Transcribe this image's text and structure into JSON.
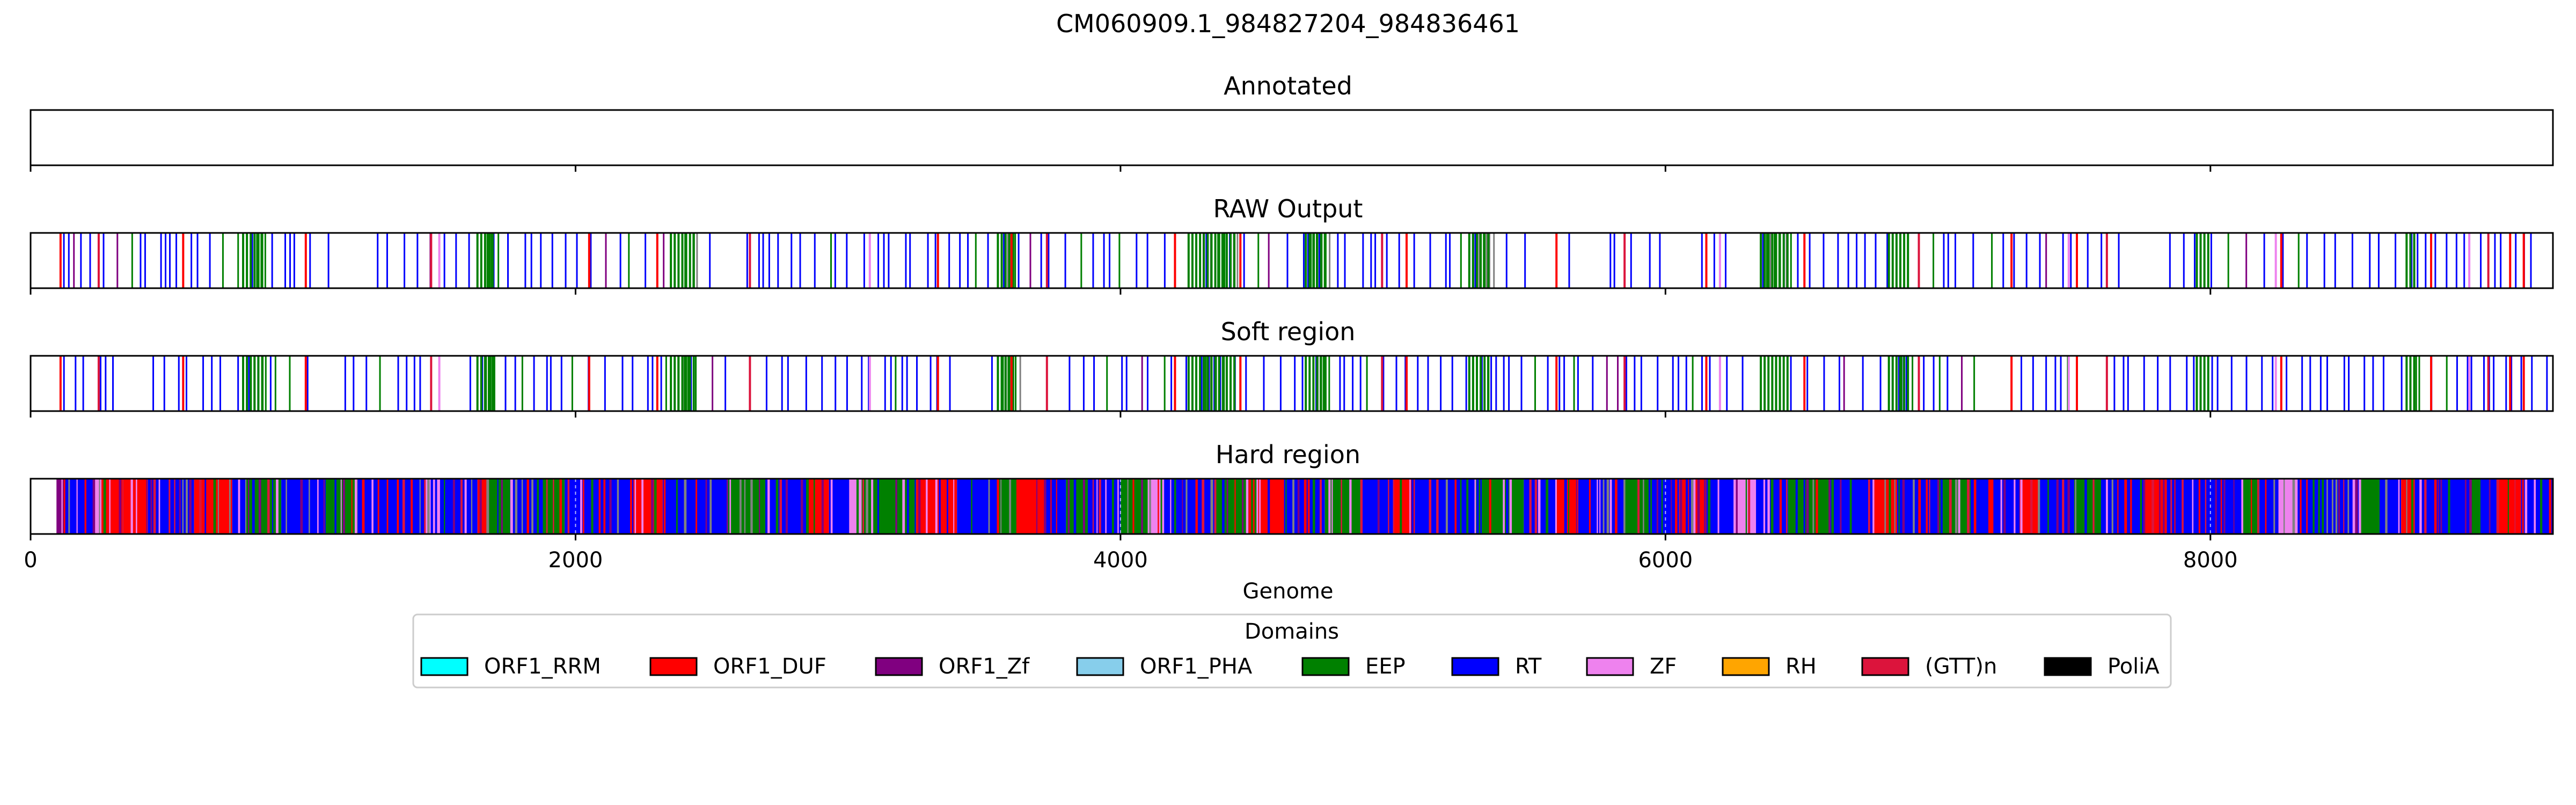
{
  "figure": {
    "title": "CM060909.1_984827204_984836461"
  },
  "chart_data": {
    "type": "genome-track",
    "title": "CM060909.1_984827204_984836461",
    "xlabel": "Genome",
    "xlim": [
      0,
      9257
    ],
    "xticks": [
      0,
      2000,
      4000,
      6000,
      8000
    ],
    "xtick_labels": [
      "0",
      "2000",
      "4000",
      "6000",
      "8000"
    ],
    "panels": [
      {
        "name": "Annotated",
        "segments": []
      },
      {
        "name": "RAW Output",
        "style": "sparse",
        "seed": 11,
        "green_bands": [
          [
            780,
            860
          ],
          [
            1640,
            1700
          ],
          [
            2350,
            2440
          ],
          [
            3550,
            3620
          ],
          [
            4250,
            4420
          ],
          [
            4680,
            4760
          ],
          [
            5280,
            5360
          ],
          [
            6350,
            6460
          ],
          [
            6820,
            6900
          ],
          [
            7950,
            8000
          ],
          [
            8720,
            8760
          ]
        ],
        "red_marks": [
          110,
          250,
          560,
          1010,
          1470,
          2050,
          2300,
          2640,
          3330,
          3600,
          3730,
          4200,
          4440,
          4960,
          5050,
          5600,
          5850,
          6150,
          6510,
          6930,
          7270,
          7510,
          7620,
          8260,
          8810,
          9020,
          9100,
          9150
        ],
        "pink_marks": [
          1500,
          3080,
          6200,
          7480,
          8240,
          8950
        ]
      },
      {
        "name": "Soft region",
        "style": "sparse",
        "seed": 23,
        "green_bands": [
          [
            780,
            860
          ],
          [
            1640,
            1700
          ],
          [
            2350,
            2440
          ],
          [
            3550,
            3620
          ],
          [
            4250,
            4420
          ],
          [
            4680,
            4760
          ],
          [
            5280,
            5360
          ],
          [
            6350,
            6460
          ],
          [
            6820,
            6900
          ],
          [
            7950,
            8000
          ],
          [
            8720,
            8760
          ]
        ],
        "red_marks": [
          110,
          250,
          560,
          1010,
          1470,
          2050,
          2300,
          2640,
          3330,
          3600,
          3730,
          4200,
          4440,
          4960,
          5050,
          5600,
          5850,
          6150,
          6510,
          6930,
          7270,
          7510,
          7620,
          8260,
          8810,
          9020,
          9100,
          9150
        ],
        "pink_marks": [
          1500,
          3080,
          6200,
          7480,
          8240,
          8950
        ]
      },
      {
        "name": "Hard region",
        "style": "dense",
        "seed": 37,
        "segments": [
          [
            95,
            125,
            "purple"
          ],
          [
            125,
            230,
            "blue"
          ],
          [
            230,
            260,
            "pink"
          ],
          [
            260,
            430,
            "red"
          ],
          [
            430,
            600,
            "blue"
          ],
          [
            600,
            740,
            "red"
          ],
          [
            740,
            790,
            "blue"
          ],
          [
            790,
            920,
            "green"
          ],
          [
            920,
            1090,
            "blue"
          ],
          [
            1090,
            1200,
            "green"
          ],
          [
            1200,
            1450,
            "blue"
          ],
          [
            1450,
            1500,
            "pink"
          ],
          [
            1500,
            1640,
            "blue"
          ],
          [
            1640,
            1680,
            "red"
          ],
          [
            1680,
            1760,
            "green"
          ],
          [
            1760,
            1880,
            "blue"
          ],
          [
            1880,
            1960,
            "green"
          ],
          [
            1960,
            2200,
            "blue"
          ],
          [
            2200,
            2320,
            "red"
          ],
          [
            2320,
            2560,
            "blue"
          ],
          [
            2560,
            2700,
            "green"
          ],
          [
            2700,
            2850,
            "blue"
          ],
          [
            2850,
            2930,
            "red"
          ],
          [
            2930,
            3000,
            "blue"
          ],
          [
            3000,
            3050,
            "pink"
          ],
          [
            3050,
            3250,
            "green"
          ],
          [
            3250,
            3400,
            "red"
          ],
          [
            3400,
            3550,
            "blue"
          ],
          [
            3550,
            3620,
            "green"
          ],
          [
            3620,
            3720,
            "red"
          ],
          [
            3720,
            3800,
            "blue"
          ],
          [
            3800,
            3880,
            "green"
          ],
          [
            3880,
            4000,
            "blue"
          ],
          [
            4000,
            4100,
            "green"
          ],
          [
            4100,
            4160,
            "pink"
          ],
          [
            4160,
            4350,
            "blue"
          ],
          [
            4350,
            4500,
            "green"
          ],
          [
            4500,
            4600,
            "red"
          ],
          [
            4600,
            4750,
            "blue"
          ],
          [
            4750,
            4880,
            "green"
          ],
          [
            4880,
            5000,
            "blue"
          ],
          [
            5000,
            5080,
            "red"
          ],
          [
            5080,
            5300,
            "blue"
          ],
          [
            5300,
            5480,
            "green"
          ],
          [
            5480,
            5600,
            "blue"
          ],
          [
            5600,
            5680,
            "red"
          ],
          [
            5680,
            5850,
            "blue"
          ],
          [
            5850,
            5950,
            "green"
          ],
          [
            5950,
            6050,
            "blue"
          ],
          [
            6050,
            6150,
            "red"
          ],
          [
            6150,
            6250,
            "blue"
          ],
          [
            6250,
            6330,
            "pink"
          ],
          [
            6330,
            6450,
            "blue"
          ],
          [
            6450,
            6600,
            "green"
          ],
          [
            6600,
            6760,
            "blue"
          ],
          [
            6760,
            6850,
            "red"
          ],
          [
            6850,
            7000,
            "blue"
          ],
          [
            7000,
            7120,
            "green"
          ],
          [
            7120,
            7300,
            "blue"
          ],
          [
            7300,
            7370,
            "red"
          ],
          [
            7370,
            7500,
            "blue"
          ],
          [
            7500,
            7600,
            "green"
          ],
          [
            7600,
            7760,
            "blue"
          ],
          [
            7760,
            7840,
            "red"
          ],
          [
            7840,
            8120,
            "blue"
          ],
          [
            8120,
            8180,
            "green"
          ],
          [
            8180,
            8250,
            "blue"
          ],
          [
            8250,
            8320,
            "pink"
          ],
          [
            8320,
            8550,
            "blue"
          ],
          [
            8550,
            8620,
            "green"
          ],
          [
            8620,
            8700,
            "blue"
          ],
          [
            8700,
            8750,
            "red"
          ],
          [
            8750,
            8950,
            "blue"
          ],
          [
            8950,
            8990,
            "green"
          ],
          [
            8990,
            9050,
            "blue"
          ],
          [
            9050,
            9140,
            "red"
          ],
          [
            9140,
            9257,
            "blue"
          ]
        ]
      }
    ],
    "legend": {
      "title": "Domains",
      "placement": "bottom-center",
      "entries": [
        {
          "label": "ORF1_RRM",
          "color": "#00ffff"
        },
        {
          "label": "ORF1_DUF",
          "color": "#ff0000"
        },
        {
          "label": "ORF1_Zf",
          "color": "#800080"
        },
        {
          "label": "ORF1_PHA",
          "color": "#87ceeb"
        },
        {
          "label": "EEP",
          "color": "#008000"
        },
        {
          "label": "RT",
          "color": "#0000ff"
        },
        {
          "label": "ZF",
          "color": "#ee82ee"
        },
        {
          "label": "RH",
          "color": "#ffa500"
        },
        {
          "label": "(GTT)n",
          "color": "#dc143c"
        },
        {
          "label": "PoliA",
          "color": "#000000"
        }
      ]
    },
    "colors": {
      "blue": "#0000ff",
      "green": "#008000",
      "red": "#ff0000",
      "crimson": "#dc143c",
      "purple": "#800080",
      "pink": "#ee82ee",
      "grey": "#808080"
    }
  }
}
